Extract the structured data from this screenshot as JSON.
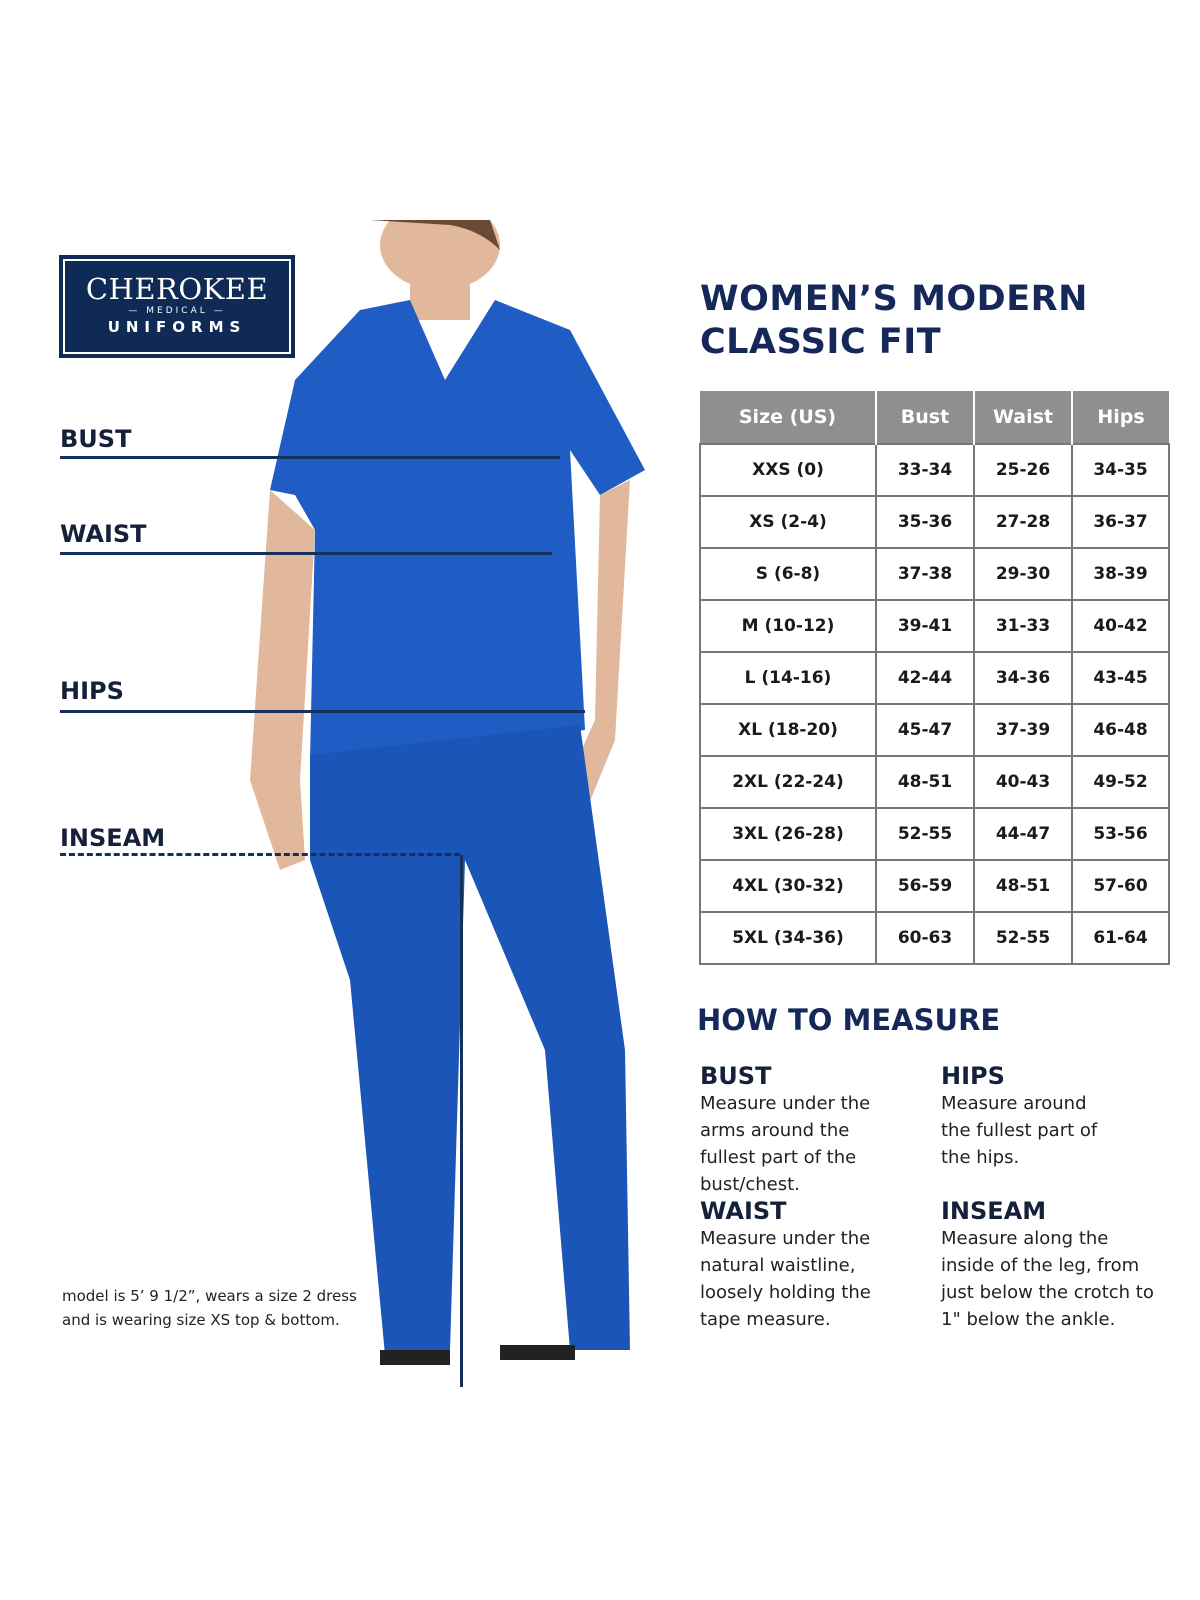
{
  "logo": {
    "brand": "CHEROKEE",
    "medical": "— MEDICAL —",
    "uniforms": "UNIFORMS"
  },
  "title": {
    "line1": "WOMEN’S MODERN",
    "line2": "CLASSIC FIT"
  },
  "measure_labels": {
    "bust": "BUST",
    "waist": "WAIST",
    "hips": "HIPS",
    "inseam": "INSEAM"
  },
  "size_chart": {
    "headers": [
      "Size (US)",
      "Bust",
      "Waist",
      "Hips"
    ],
    "rows": [
      [
        "XXS (0)",
        "33-34",
        "25-26",
        "34-35"
      ],
      [
        "XS (2-4)",
        "35-36",
        "27-28",
        "36-37"
      ],
      [
        "S (6-8)",
        "37-38",
        "29-30",
        "38-39"
      ],
      [
        "M (10-12)",
        "39-41",
        "31-33",
        "40-42"
      ],
      [
        "L (14-16)",
        "42-44",
        "34-36",
        "43-45"
      ],
      [
        "XL (18-20)",
        "45-47",
        "37-39",
        "46-48"
      ],
      [
        "2XL (22-24)",
        "48-51",
        "40-43",
        "49-52"
      ],
      [
        "3XL (26-28)",
        "52-55",
        "44-47",
        "53-56"
      ],
      [
        "4XL (30-32)",
        "56-59",
        "48-51",
        "57-60"
      ],
      [
        "5XL (34-36)",
        "60-63",
        "52-55",
        "61-64"
      ]
    ]
  },
  "how_to_measure": {
    "title": "HOW TO MEASURE",
    "items": [
      {
        "heading": "BUST",
        "text": "Measure under the arms around the fullest part of the bust/chest."
      },
      {
        "heading": "HIPS",
        "text": "Measure around the fullest part of the hips."
      },
      {
        "heading": "WAIST",
        "text": "Measure under the natural waistline, loosely holding the tape measure."
      },
      {
        "heading": "INSEAM",
        "text": "Measure along the inside of the leg, from just below the crotch to 1\" below the ankle."
      }
    ]
  },
  "model_note": {
    "line1": "model is 5’ 9 1/2”, wears a size 2 dress",
    "line2": "and is wearing size XS top & bottom."
  },
  "colors": {
    "navy": "#15285a",
    "scrub_blue": "#1f5cc4",
    "header_gray": "#8f8f8f"
  }
}
